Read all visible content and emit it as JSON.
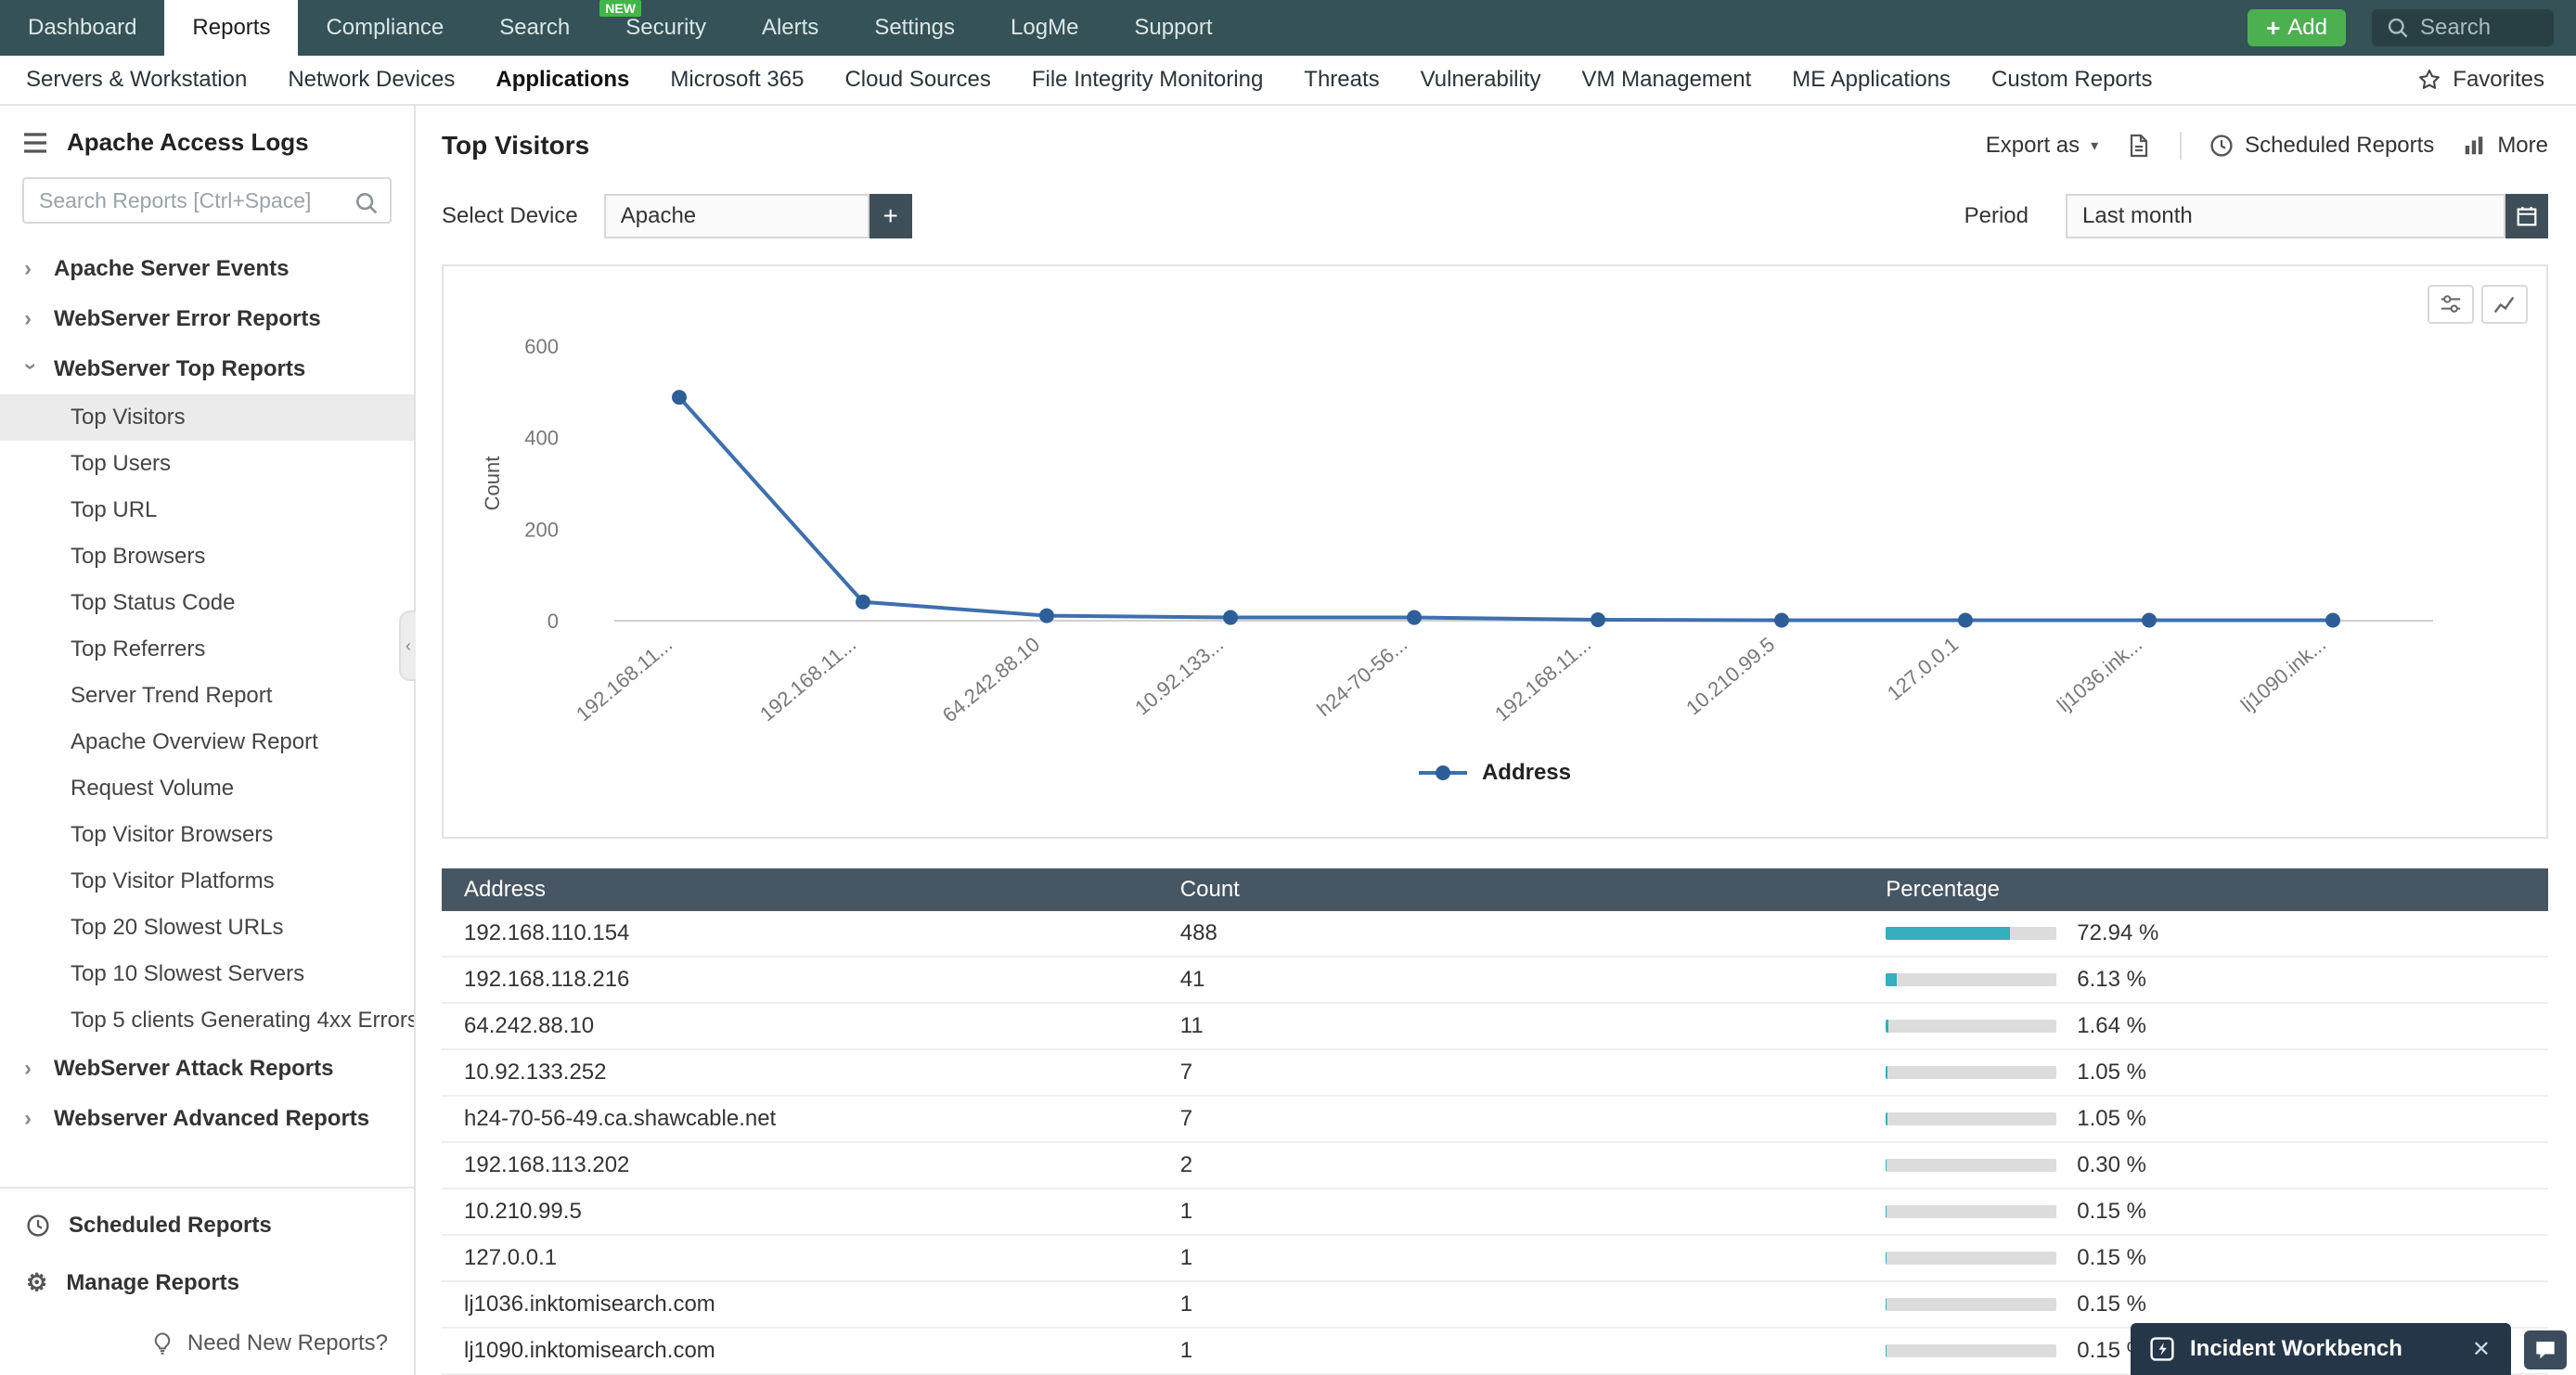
{
  "top_nav": {
    "items": [
      {
        "label": "Dashboard"
      },
      {
        "label": "Reports",
        "active": true
      },
      {
        "label": "Compliance"
      },
      {
        "label": "Search"
      },
      {
        "label": "Security",
        "badge": "NEW"
      },
      {
        "label": "Alerts"
      },
      {
        "label": "Settings"
      },
      {
        "label": "LogMe"
      },
      {
        "label": "Support"
      }
    ],
    "add_label": "Add",
    "search_placeholder": "Search"
  },
  "secondary_nav": {
    "items": [
      {
        "label": "Servers & Workstation"
      },
      {
        "label": "Network Devices"
      },
      {
        "label": "Applications",
        "active": true
      },
      {
        "label": "Microsoft 365"
      },
      {
        "label": "Cloud Sources"
      },
      {
        "label": "File Integrity Monitoring"
      },
      {
        "label": "Threats"
      },
      {
        "label": "Vulnerability"
      },
      {
        "label": "VM Management"
      },
      {
        "label": "ME Applications"
      },
      {
        "label": "Custom Reports"
      }
    ],
    "favorites_label": "Favorites"
  },
  "sidebar": {
    "title": "Apache Access Logs",
    "search_placeholder": "Search Reports [Ctrl+Space]",
    "tree": [
      {
        "type": "group",
        "label": "Apache Server Events"
      },
      {
        "type": "group",
        "label": "WebServer Error Reports"
      },
      {
        "type": "group",
        "label": "WebServer Top Reports",
        "expanded": true
      },
      {
        "type": "report",
        "label": "Top Visitors",
        "selected": true
      },
      {
        "type": "report",
        "label": "Top Users"
      },
      {
        "type": "report",
        "label": "Top URL"
      },
      {
        "type": "report",
        "label": "Top Browsers"
      },
      {
        "type": "report",
        "label": "Top Status Code"
      },
      {
        "type": "report",
        "label": "Top Referrers"
      },
      {
        "type": "report",
        "label": "Server Trend Report"
      },
      {
        "type": "report",
        "label": "Apache Overview Report"
      },
      {
        "type": "report",
        "label": "Request Volume"
      },
      {
        "type": "report",
        "label": "Top Visitor Browsers"
      },
      {
        "type": "report",
        "label": "Top Visitor Platforms"
      },
      {
        "type": "report",
        "label": "Top 20 Slowest URLs"
      },
      {
        "type": "report",
        "label": "Top 10 Slowest Servers"
      },
      {
        "type": "report",
        "label": "Top 5 clients Generating 4xx Errors"
      },
      {
        "type": "group",
        "label": "WebServer Attack Reports"
      },
      {
        "type": "group",
        "label": "Webserver Advanced Reports"
      }
    ],
    "footer": {
      "scheduled": "Scheduled Reports",
      "manage": "Manage Reports",
      "need_new": "Need New Reports?"
    }
  },
  "main": {
    "title": "Top Visitors",
    "toolbar": {
      "export_label": "Export as",
      "scheduled_label": "Scheduled Reports",
      "more_label": "More"
    },
    "select_device_label": "Select Device",
    "device_value": "Apache",
    "period_label": "Period",
    "period_value": "Last month"
  },
  "chart_data": {
    "type": "line",
    "categories": [
      "192.168.11...",
      "192.168.11...",
      "64.242.88.10",
      "10.92.133...",
      "h24-70-56...",
      "192.168.11...",
      "10.210.99.5",
      "127.0.0.1",
      "lj1036.ink...",
      "lj1090.ink..."
    ],
    "series": [
      {
        "name": "Address",
        "values": [
          488,
          41,
          11,
          7,
          7,
          2,
          1,
          1,
          1,
          1
        ]
      }
    ],
    "ylabel": "Count",
    "yticks": [
      0,
      200,
      400,
      600
    ],
    "ylim": [
      0,
      600
    ],
    "grid": false,
    "legend_position": "bottom",
    "line_color": "#3e6fae",
    "marker_color": "#2e5e97"
  },
  "table": {
    "columns": [
      "Address",
      "Count",
      "Percentage"
    ],
    "rows": [
      {
        "address": "192.168.110.154",
        "count": 488,
        "percentage": "72.94 %",
        "pct": 72.94
      },
      {
        "address": "192.168.118.216",
        "count": 41,
        "percentage": "6.13 %",
        "pct": 6.13
      },
      {
        "address": "64.242.88.10",
        "count": 11,
        "percentage": "1.64 %",
        "pct": 1.64
      },
      {
        "address": "10.92.133.252",
        "count": 7,
        "percentage": "1.05 %",
        "pct": 1.05
      },
      {
        "address": "h24-70-56-49.ca.shawcable.net",
        "count": 7,
        "percentage": "1.05 %",
        "pct": 1.05
      },
      {
        "address": "192.168.113.202",
        "count": 2,
        "percentage": "0.30 %",
        "pct": 0.3
      },
      {
        "address": "10.210.99.5",
        "count": 1,
        "percentage": "0.15 %",
        "pct": 0.15
      },
      {
        "address": "127.0.0.1",
        "count": 1,
        "percentage": "0.15 %",
        "pct": 0.15
      },
      {
        "address": "lj1036.inktomisearch.com",
        "count": 1,
        "percentage": "0.15 %",
        "pct": 0.15
      },
      {
        "address": "lj1090.inktomisearch.com",
        "count": 1,
        "percentage": "0.15 %",
        "pct": 0.15
      }
    ]
  },
  "workbench": {
    "label": "Incident Workbench"
  },
  "colors": {
    "topnav_bg": "#345257",
    "accent_green": "#4caf50",
    "badge_green": "#43b649",
    "table_header_bg": "#475663",
    "bar_fill": "#35aebd",
    "chart_line": "#3e6fae",
    "workbench_bg": "#253649"
  }
}
